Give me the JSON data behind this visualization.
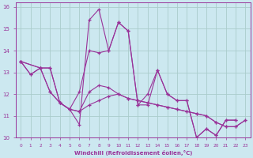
{
  "xlabel": "Windchill (Refroidissement éolien,°C)",
  "background_color": "#cce8f0",
  "grid_color": "#aacccc",
  "line_color": "#993399",
  "xlim": [
    -0.5,
    23.5
  ],
  "ylim": [
    10,
    16.2
  ],
  "xticks": [
    0,
    1,
    2,
    3,
    4,
    5,
    6,
    7,
    8,
    9,
    10,
    11,
    12,
    13,
    14,
    15,
    16,
    17,
    18,
    19,
    20,
    21,
    22,
    23
  ],
  "yticks": [
    10,
    11,
    12,
    13,
    14,
    15,
    16
  ],
  "series1_x": [
    0,
    1,
    2,
    3,
    4,
    5,
    6,
    7,
    8,
    9,
    10,
    11,
    12,
    13,
    14,
    15,
    16,
    17,
    18,
    19,
    20,
    21,
    22
  ],
  "series1_y": [
    13.5,
    12.9,
    13.2,
    13.2,
    11.6,
    11.3,
    10.6,
    15.4,
    15.9,
    14.0,
    15.3,
    14.9,
    11.5,
    11.5,
    13.1,
    12.0,
    11.7,
    11.7,
    10.0,
    10.4,
    10.1,
    10.8,
    10.8
  ],
  "series2_x": [
    0,
    1,
    2,
    3,
    4,
    5,
    6,
    7,
    8,
    9,
    10,
    11,
    12,
    13,
    14,
    15,
    16,
    17,
    18,
    19,
    20,
    21,
    22
  ],
  "series2_y": [
    13.5,
    12.9,
    13.2,
    13.2,
    11.6,
    11.3,
    12.1,
    14.0,
    13.9,
    14.0,
    15.3,
    14.9,
    11.5,
    12.0,
    13.1,
    12.0,
    11.7,
    11.7,
    10.0,
    10.4,
    10.1,
    10.8,
    10.8
  ],
  "series3_x": [
    0,
    2,
    3,
    4,
    5,
    6,
    7,
    8,
    9,
    10,
    11,
    12,
    13,
    14,
    15,
    16,
    17,
    18,
    19,
    20,
    21,
    22,
    23
  ],
  "series3_y": [
    13.5,
    13.2,
    12.1,
    11.6,
    11.3,
    11.2,
    11.5,
    11.7,
    11.9,
    12.0,
    11.8,
    11.7,
    11.6,
    11.5,
    11.4,
    11.3,
    11.2,
    11.1,
    11.0,
    10.7,
    10.5,
    10.5,
    10.8
  ],
  "series4_x": [
    0,
    2,
    3,
    4,
    5,
    6,
    7,
    8,
    9,
    10,
    11,
    12,
    13,
    14,
    15,
    16,
    17,
    18,
    19,
    20,
    21,
    22,
    23
  ],
  "series4_y": [
    13.5,
    13.2,
    12.1,
    11.6,
    11.3,
    11.2,
    12.1,
    12.4,
    12.3,
    12.0,
    11.8,
    11.7,
    11.6,
    11.5,
    11.4,
    11.3,
    11.2,
    11.1,
    11.0,
    10.7,
    10.5,
    10.5,
    10.8
  ]
}
